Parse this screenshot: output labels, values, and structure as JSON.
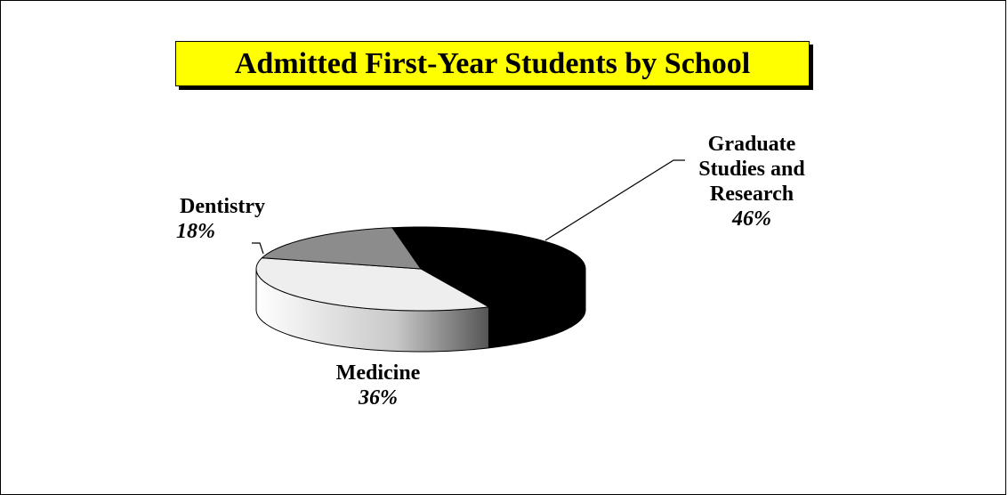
{
  "chart_data": {
    "type": "pie3d",
    "title": "Admitted First-Year Students by School",
    "categories": [
      "Graduate Studies and Research",
      "Medicine",
      "Dentistry"
    ],
    "values": [
      46,
      36,
      18
    ],
    "value_labels": [
      "46%",
      "36%",
      "18%"
    ],
    "colors": [
      "#000000",
      "#eeeeee",
      "#8c8c8c"
    ]
  }
}
